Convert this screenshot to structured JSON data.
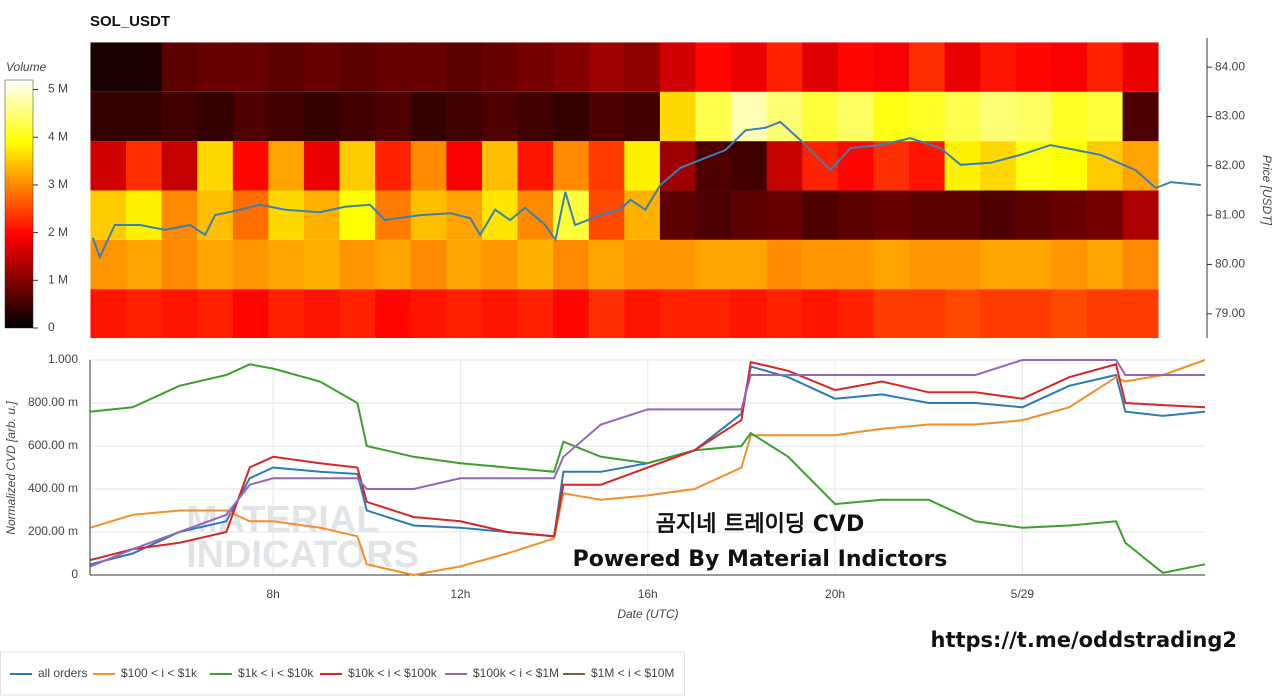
{
  "chart_data": [
    {
      "type": "heatmap",
      "title": "SOL_USDT",
      "colorbar_label": "Volume",
      "colormap": "hot",
      "clim": [
        0,
        5.2
      ],
      "cticks": [
        0,
        {
          "value": 1,
          "label": "1 M"
        },
        {
          "value": 2,
          "label": "2 M"
        },
        {
          "value": 3,
          "label": "3 M"
        },
        {
          "value": 4,
          "label": "4 M"
        },
        {
          "value": 5,
          "label": "5 M"
        }
      ],
      "xlim": [
        4.09,
        27.9
      ],
      "x_bins": [
        4.1,
        4.86,
        5.62,
        6.38,
        7.14,
        7.9,
        8.66,
        9.42,
        10.18,
        10.94,
        11.7,
        12.46,
        13.22,
        13.98,
        14.74,
        15.5,
        16.26,
        17.02,
        17.78,
        18.54,
        19.3,
        20.06,
        20.82,
        21.58,
        22.34,
        23.1,
        23.86,
        24.62,
        25.38,
        26.14,
        26.9
      ],
      "y_bins": [
        78.5,
        79.5,
        80.5,
        81.5,
        82.5,
        83.5,
        84.5
      ],
      "z": [
        [
          2.1,
          2.2,
          2.1,
          2.2,
          2.0,
          2.2,
          2.1,
          2.2,
          2.0,
          2.1,
          2.2,
          2.1,
          2.2,
          2.0,
          2.3,
          2.1,
          2.2,
          2.2,
          2.1,
          2.2,
          2.1,
          2.2,
          2.4,
          2.4,
          2.5,
          2.4,
          2.4,
          2.5,
          2.4,
          2.4
        ],
        [
          3.1,
          3.2,
          3.0,
          3.2,
          3.1,
          3.2,
          3.3,
          3.1,
          3.2,
          3.0,
          3.2,
          3.1,
          3.3,
          3.0,
          3.2,
          3.1,
          3.1,
          3.2,
          3.2,
          3.0,
          3.1,
          3.1,
          3.2,
          3.1,
          3.1,
          3.2,
          3.2,
          3.1,
          3.2,
          3.0
        ],
        [
          3.5,
          3.8,
          3.0,
          3.4,
          2.8,
          3.6,
          3.3,
          3.9,
          2.9,
          3.4,
          3.2,
          3.7,
          3.0,
          4.2,
          2.5,
          3.3,
          0.7,
          0.6,
          0.7,
          0.8,
          0.6,
          0.7,
          0.8,
          0.7,
          0.7,
          0.6,
          0.7,
          0.8,
          0.9,
          1.3
        ],
        [
          1.6,
          2.3,
          1.5,
          3.6,
          2.0,
          3.2,
          1.8,
          3.5,
          2.2,
          3.0,
          1.9,
          3.4,
          2.1,
          3.0,
          2.4,
          3.8,
          1.2,
          0.6,
          0.5,
          1.5,
          2.2,
          2.0,
          2.3,
          2.1,
          3.8,
          3.6,
          4.0,
          3.9,
          3.5,
          3.2
        ],
        [
          0.4,
          0.4,
          0.5,
          0.4,
          0.6,
          0.5,
          0.4,
          0.5,
          0.6,
          0.4,
          0.5,
          0.6,
          0.5,
          0.4,
          0.6,
          0.5,
          3.6,
          4.3,
          4.8,
          4.5,
          4.2,
          4.4,
          4.0,
          4.1,
          4.3,
          4.5,
          4.4,
          4.1,
          4.2,
          0.6
        ],
        [
          0.2,
          0.2,
          0.7,
          0.8,
          0.8,
          0.7,
          0.8,
          0.7,
          0.8,
          0.8,
          0.7,
          0.8,
          0.9,
          1.0,
          1.2,
          1.1,
          1.6,
          2.0,
          1.8,
          2.2,
          1.7,
          2.0,
          1.9,
          2.3,
          1.8,
          2.1,
          2.0,
          1.9,
          2.2,
          1.8
        ]
      ],
      "ylabel": "Price [USDT]",
      "ylim": [
        78.51,
        84.59
      ],
      "yticks": [
        {
          "value": 79,
          "label": "79.00"
        },
        {
          "value": 80,
          "label": "80.00"
        },
        {
          "value": 81,
          "label": "81.00"
        },
        {
          "value": 82,
          "label": "82.00"
        },
        {
          "value": 83,
          "label": "83.00"
        },
        {
          "value": 84,
          "label": "84.00"
        }
      ],
      "price": {
        "color": "#3a7fb5",
        "x": [
          4.15,
          4.3,
          4.62,
          5.16,
          5.69,
          6.23,
          6.55,
          6.76,
          7.3,
          7.72,
          8.26,
          9.0,
          9.54,
          10.07,
          10.39,
          11.14,
          11.78,
          12.21,
          12.42,
          12.74,
          13.06,
          13.38,
          13.81,
          14.03,
          14.24,
          14.45,
          14.99,
          15.41,
          15.63,
          15.95,
          16.27,
          16.7,
          17.23,
          17.66,
          18.09,
          18.51,
          18.83,
          19.26,
          19.9,
          20.33,
          20.97,
          21.61,
          22.25,
          22.68,
          23.32,
          23.96,
          24.6,
          25.14,
          25.67,
          26.42,
          26.85,
          27.17,
          27.81
        ],
        "values": [
          80.54,
          80.15,
          80.8,
          80.8,
          80.7,
          80.8,
          80.6,
          81.0,
          81.11,
          81.21,
          81.11,
          81.06,
          81.17,
          81.21,
          80.9,
          81.0,
          81.04,
          80.94,
          80.6,
          81.11,
          80.9,
          81.15,
          80.8,
          80.5,
          81.47,
          80.8,
          81.0,
          81.11,
          81.31,
          81.11,
          81.61,
          81.96,
          82.16,
          82.32,
          82.72,
          82.77,
          82.89,
          82.52,
          81.91,
          82.36,
          82.42,
          82.56,
          82.36,
          82.02,
          82.06,
          82.22,
          82.42,
          82.32,
          82.22,
          81.91,
          81.55,
          81.67,
          81.61
        ]
      }
    },
    {
      "type": "line",
      "xlabel": "Date (UTC)",
      "ylabel": "Normalized CVD [arb. u.]",
      "xlim": [
        4.09,
        27.9
      ],
      "xticks": [
        {
          "value": 8,
          "label": "8h"
        },
        {
          "value": 12,
          "label": "12h"
        },
        {
          "value": 16,
          "label": "16h"
        },
        {
          "value": 20,
          "label": "20h"
        },
        {
          "value": 24,
          "label": "5/29"
        }
      ],
      "ylim": [
        0,
        1
      ],
      "yticks": [
        0,
        {
          "value": 0.2,
          "label": "200.00 m"
        },
        {
          "value": 0.4,
          "label": "400.00 m"
        },
        {
          "value": 0.6,
          "label": "600.00 m"
        },
        {
          "value": 0.8,
          "label": "800.00 m"
        },
        {
          "value": 1,
          "label": "1.000"
        }
      ],
      "grid": true,
      "legend": "bottom",
      "x": [
        4.1,
        5,
        6,
        7,
        7.5,
        8,
        9,
        9.8,
        10,
        11,
        12,
        13,
        14,
        14.2,
        15,
        16,
        17,
        18,
        18.2,
        19,
        20,
        21,
        22,
        23,
        24,
        25,
        26,
        26.2,
        27,
        27.9
      ],
      "series": [
        {
          "name": "all orders",
          "color": "#2c7bb6",
          "values": [
            0.05,
            0.1,
            0.2,
            0.25,
            0.45,
            0.5,
            0.48,
            0.47,
            0.3,
            0.23,
            0.22,
            0.2,
            0.18,
            0.48,
            0.48,
            0.52,
            0.58,
            0.75,
            0.97,
            0.92,
            0.82,
            0.84,
            0.8,
            0.8,
            0.78,
            0.88,
            0.93,
            0.76,
            0.74,
            0.76
          ]
        },
        {
          "name": "$100 < i < $1k",
          "color": "#f28e2b",
          "values": [
            0.22,
            0.28,
            0.3,
            0.3,
            0.25,
            0.25,
            0.22,
            0.18,
            0.05,
            0.0,
            0.04,
            0.1,
            0.17,
            0.38,
            0.35,
            0.37,
            0.4,
            0.5,
            0.65,
            0.65,
            0.65,
            0.68,
            0.7,
            0.7,
            0.72,
            0.78,
            0.92,
            0.9,
            0.93,
            1.0
          ]
        },
        {
          "name": "$1k < i < $10k",
          "color": "#3ca02c",
          "values": [
            0.76,
            0.78,
            0.88,
            0.93,
            0.98,
            0.96,
            0.9,
            0.8,
            0.6,
            0.55,
            0.52,
            0.5,
            0.48,
            0.62,
            0.55,
            0.52,
            0.58,
            0.6,
            0.66,
            0.55,
            0.33,
            0.35,
            0.35,
            0.25,
            0.22,
            0.23,
            0.25,
            0.15,
            0.01,
            0.05
          ]
        },
        {
          "name": "$10k < i < $100k",
          "color": "#d62728",
          "values": [
            0.07,
            0.12,
            0.15,
            0.2,
            0.5,
            0.55,
            0.52,
            0.5,
            0.34,
            0.27,
            0.25,
            0.2,
            0.18,
            0.42,
            0.42,
            0.5,
            0.58,
            0.72,
            0.99,
            0.95,
            0.86,
            0.9,
            0.85,
            0.85,
            0.82,
            0.92,
            0.98,
            0.8,
            0.79,
            0.78
          ]
        },
        {
          "name": "$100k < i < $1M",
          "color": "#9467bd",
          "values": [
            0.04,
            0.12,
            0.2,
            0.28,
            0.42,
            0.45,
            0.45,
            0.45,
            0.4,
            0.4,
            0.45,
            0.45,
            0.45,
            0.55,
            0.7,
            0.77,
            0.77,
            0.77,
            0.93,
            0.93,
            0.93,
            0.93,
            0.93,
            0.93,
            1.0,
            1.0,
            1.0,
            0.93,
            0.93,
            0.93
          ]
        },
        {
          "name": "$1M < i < $10M",
          "color": "#8c564b",
          "values": [
            null,
            null,
            null,
            null,
            null,
            null,
            null,
            null,
            null,
            null,
            null,
            null,
            null,
            null,
            null,
            null,
            null,
            null,
            null,
            null,
            null,
            null,
            null,
            null,
            null,
            null,
            null,
            null,
            null,
            null
          ]
        }
      ],
      "annotations": [
        "곰지네 트레이딩 CVD",
        "Powered By Material Indictors"
      ],
      "watermark": [
        "MATERIAL",
        "INDICATORS"
      ],
      "link": "https://t.me/oddstrading2"
    }
  ]
}
